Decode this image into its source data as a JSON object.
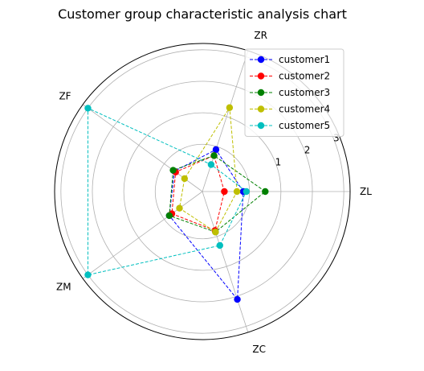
{
  "chart_data": {
    "type": "radar",
    "title": "Customer group characteristic analysis chart",
    "axes": [
      "ZL",
      "ZR",
      "ZF",
      "ZM",
      "ZC"
    ],
    "radial_ticks": [
      "1",
      "2",
      "3"
    ],
    "rlim": [
      -1.5,
      3.2
    ],
    "grid": true,
    "legend_position": "top-right",
    "series": [
      {
        "name": "customer1",
        "color": "#0000ff",
        "values": [
          -0.2,
          -0.1,
          -0.4,
          -0.2,
          2.1
        ]
      },
      {
        "name": "customer2",
        "color": "#ff0000",
        "values": [
          -0.8,
          -0.3,
          -0.45,
          -0.3,
          -0.2
        ]
      },
      {
        "name": "customer3",
        "color": "#008000",
        "values": [
          0.5,
          -0.3,
          -0.35,
          -0.2,
          -0.15
        ]
      },
      {
        "name": "customer4",
        "color": "#bfbf00",
        "values": [
          -0.4,
          1.3,
          -0.8,
          -0.6,
          -0.15
        ]
      },
      {
        "name": "customer5",
        "color": "#00bfbf",
        "values": [
          -0.1,
          -0.6,
          3.0,
          3.0,
          0.3
        ]
      }
    ]
  }
}
